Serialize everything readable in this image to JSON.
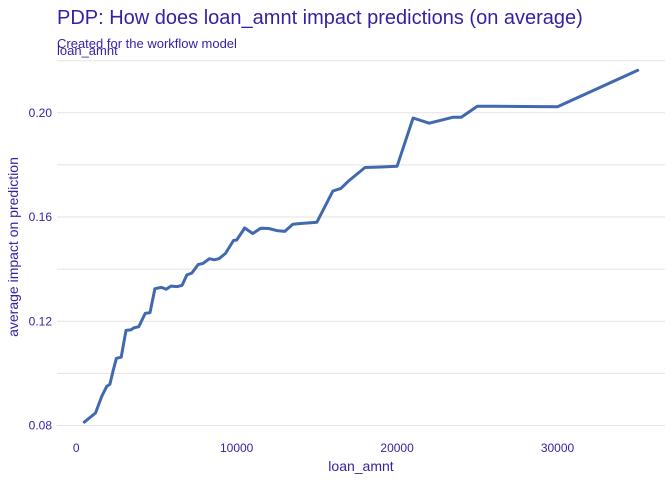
{
  "title": "PDP: How does loan_amnt impact predictions (on average)",
  "subtitle": "Created for the workflow model",
  "chart_data": {
    "type": "line",
    "title": "PDP: How does loan_amnt impact predictions (on average)",
    "subtitle": "Created for the workflow model",
    "panel_label": "loan_amnt",
    "xlabel": "loan_amnt",
    "ylabel": "average impact on prediction",
    "xlim": [
      -1200,
      36700
    ],
    "ylim": [
      0.0775,
      0.2195
    ],
    "xticks": [
      0,
      10000,
      20000,
      30000
    ],
    "xtick_labels": [
      "0",
      "10000",
      "20000",
      "30000"
    ],
    "yticks": [
      0.08,
      0.12,
      0.16,
      0.2
    ],
    "ytick_labels": [
      "0.08",
      "0.12",
      "0.16",
      "0.20"
    ],
    "grid": true,
    "line_color": "#4169b0",
    "series": [
      {
        "x": [
          500,
          1200,
          1600,
          1900,
          2100,
          2300,
          2500,
          2800,
          3100,
          3400,
          3600,
          3900,
          4300,
          4600,
          4900,
          5300,
          5600,
          5900,
          6300,
          6600,
          6900,
          7200,
          7600,
          7900,
          8300,
          8600,
          8900,
          9300,
          9800,
          10000,
          10500,
          11000,
          11500,
          12000,
          12500,
          13000,
          13500,
          14000,
          15000,
          16000,
          16500,
          17000,
          18000,
          19000,
          20000,
          21000,
          22000,
          23500,
          24000,
          25000,
          26000,
          30000,
          35000
        ],
        "y": [
          0.0813,
          0.0848,
          0.0913,
          0.095,
          0.0958,
          0.101,
          0.1058,
          0.1062,
          0.1165,
          0.1167,
          0.1175,
          0.1179,
          0.123,
          0.1233,
          0.1325,
          0.133,
          0.1323,
          0.1335,
          0.1333,
          0.1338,
          0.1378,
          0.1385,
          0.1418,
          0.1422,
          0.144,
          0.1436,
          0.144,
          0.146,
          0.151,
          0.1512,
          0.1558,
          0.1537,
          0.1557,
          0.1556,
          0.1548,
          0.1545,
          0.1572,
          0.1575,
          0.158,
          0.17,
          0.171,
          0.174,
          0.179,
          0.1792,
          0.1795,
          0.198,
          0.196,
          0.1983,
          0.1983,
          0.2025,
          0.2025,
          0.2023,
          0.2163
        ]
      }
    ]
  }
}
